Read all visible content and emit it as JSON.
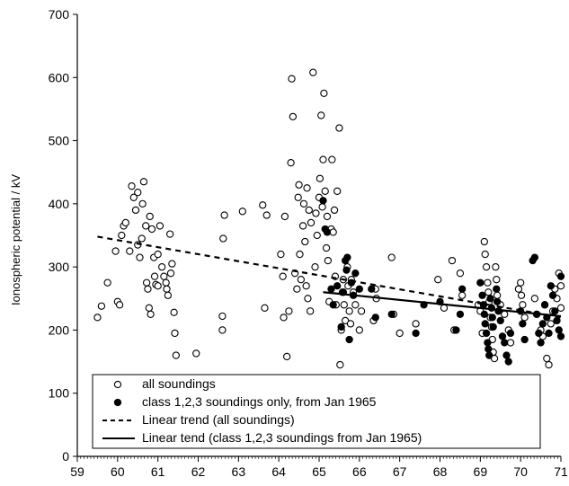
{
  "chart_data": {
    "type": "scatter",
    "title": "",
    "xlabel": "",
    "ylabel": "Ionospheric potential / kV",
    "xlim": [
      59,
      71
    ],
    "ylim": [
      0,
      700
    ],
    "x_ticks": [
      "59",
      "60",
      "61",
      "62",
      "63",
      "64",
      "65",
      "66",
      "67",
      "68",
      "69",
      "70",
      "71"
    ],
    "y_ticks": [
      "0",
      "100",
      "200",
      "300",
      "400",
      "500",
      "600",
      "700"
    ],
    "grid": false,
    "legend_position": "bottom-center",
    "series": [
      {
        "name": "all soundings",
        "marker": "open-circle",
        "color": "#000000",
        "points": [
          [
            59.5,
            220
          ],
          [
            59.6,
            238
          ],
          [
            59.75,
            275
          ],
          [
            59.95,
            325
          ],
          [
            60.0,
            245
          ],
          [
            60.05,
            240
          ],
          [
            60.1,
            350
          ],
          [
            60.15,
            365
          ],
          [
            60.2,
            370
          ],
          [
            60.3,
            325
          ],
          [
            60.35,
            428
          ],
          [
            60.4,
            410
          ],
          [
            60.45,
            390
          ],
          [
            60.5,
            418
          ],
          [
            60.5,
            335
          ],
          [
            60.55,
            315
          ],
          [
            60.6,
            345
          ],
          [
            60.62,
            400
          ],
          [
            60.65,
            435
          ],
          [
            60.7,
            365
          ],
          [
            60.72,
            275
          ],
          [
            60.75,
            265
          ],
          [
            60.78,
            235
          ],
          [
            60.8,
            380
          ],
          [
            60.82,
            225
          ],
          [
            60.85,
            360
          ],
          [
            60.9,
            315
          ],
          [
            60.92,
            285
          ],
          [
            60.95,
            272
          ],
          [
            61.0,
            320
          ],
          [
            61.0,
            270
          ],
          [
            61.05,
            365
          ],
          [
            61.1,
            300
          ],
          [
            61.15,
            285
          ],
          [
            61.2,
            275
          ],
          [
            61.22,
            265
          ],
          [
            61.25,
            255
          ],
          [
            61.3,
            352
          ],
          [
            61.32,
            290
          ],
          [
            61.35,
            305
          ],
          [
            61.4,
            228
          ],
          [
            61.42,
            195
          ],
          [
            61.45,
            160
          ],
          [
            61.95,
            163
          ],
          [
            62.6,
            200
          ],
          [
            62.6,
            222
          ],
          [
            62.62,
            345
          ],
          [
            62.65,
            382
          ],
          [
            63.1,
            388
          ],
          [
            63.6,
            398
          ],
          [
            63.65,
            235
          ],
          [
            63.7,
            382
          ],
          [
            64.05,
            320
          ],
          [
            64.1,
            285
          ],
          [
            64.12,
            220
          ],
          [
            64.15,
            380
          ],
          [
            64.2,
            158
          ],
          [
            64.25,
            230
          ],
          [
            64.3,
            465
          ],
          [
            64.32,
            598
          ],
          [
            64.35,
            538
          ],
          [
            64.4,
            290
          ],
          [
            64.45,
            265
          ],
          [
            64.48,
            410
          ],
          [
            64.5,
            430
          ],
          [
            64.52,
            320
          ],
          [
            64.55,
            280
          ],
          [
            64.6,
            365
          ],
          [
            64.62,
            400
          ],
          [
            64.65,
            340
          ],
          [
            64.68,
            270
          ],
          [
            64.7,
            425
          ],
          [
            64.72,
            250
          ],
          [
            64.75,
            390
          ],
          [
            64.78,
            230
          ],
          [
            64.8,
            370
          ],
          [
            64.85,
            608
          ],
          [
            64.9,
            300
          ],
          [
            64.92,
            385
          ],
          [
            64.95,
            350
          ],
          [
            65.0,
            410
          ],
          [
            65.02,
            440
          ],
          [
            65.05,
            540
          ],
          [
            65.08,
            395
          ],
          [
            65.1,
            470
          ],
          [
            65.12,
            575
          ],
          [
            65.15,
            420
          ],
          [
            65.18,
            330
          ],
          [
            65.2,
            380
          ],
          [
            65.22,
            310
          ],
          [
            65.25,
            245
          ],
          [
            65.3,
            360
          ],
          [
            65.32,
            470
          ],
          [
            65.35,
            355
          ],
          [
            65.38,
            390
          ],
          [
            65.4,
            285
          ],
          [
            65.42,
            240
          ],
          [
            65.45,
            420
          ],
          [
            65.5,
            520
          ],
          [
            65.52,
            145
          ],
          [
            65.55,
            200
          ],
          [
            65.58,
            260
          ],
          [
            65.6,
            280
          ],
          [
            65.62,
            240
          ],
          [
            65.65,
            215
          ],
          [
            65.7,
            300
          ],
          [
            65.72,
            270
          ],
          [
            65.75,
            230
          ],
          [
            65.78,
            210
          ],
          [
            65.8,
            280
          ],
          [
            65.85,
            260
          ],
          [
            65.9,
            240
          ],
          [
            66.0,
            200
          ],
          [
            66.05,
            230
          ],
          [
            66.35,
            215
          ],
          [
            66.4,
            265
          ],
          [
            66.42,
            250
          ],
          [
            66.8,
            315
          ],
          [
            66.85,
            225
          ],
          [
            67.0,
            195
          ],
          [
            67.4,
            210
          ],
          [
            67.95,
            280
          ],
          [
            68.1,
            235
          ],
          [
            68.3,
            310
          ],
          [
            68.35,
            200
          ],
          [
            68.5,
            290
          ],
          [
            68.55,
            255
          ],
          [
            68.95,
            240
          ],
          [
            69.0,
            230
          ],
          [
            69.05,
            195
          ],
          [
            69.1,
            340
          ],
          [
            69.12,
            320
          ],
          [
            69.15,
            300
          ],
          [
            69.18,
            275
          ],
          [
            69.2,
            260
          ],
          [
            69.22,
            245
          ],
          [
            69.25,
            220
          ],
          [
            69.28,
            205
          ],
          [
            69.3,
            185
          ],
          [
            69.32,
            165
          ],
          [
            69.35,
            155
          ],
          [
            69.38,
            300
          ],
          [
            69.4,
            280
          ],
          [
            69.42,
            255
          ],
          [
            69.5,
            240
          ],
          [
            69.6,
            225
          ],
          [
            69.7,
            200
          ],
          [
            69.75,
            180
          ],
          [
            69.95,
            265
          ],
          [
            70.0,
            275
          ],
          [
            70.02,
            255
          ],
          [
            70.05,
            240
          ],
          [
            70.1,
            220
          ],
          [
            70.35,
            250
          ],
          [
            70.4,
            225
          ],
          [
            70.5,
            200
          ],
          [
            70.55,
            190
          ],
          [
            70.6,
            240
          ],
          [
            70.65,
            155
          ],
          [
            70.7,
            145
          ],
          [
            70.75,
            210
          ],
          [
            70.8,
            230
          ],
          [
            70.85,
            265
          ],
          [
            70.9,
            250
          ],
          [
            70.95,
            290
          ],
          [
            71.0,
            270
          ],
          [
            71.0,
            235
          ]
        ]
      },
      {
        "name": "class 1,2,3 soundings only, from Jan 1965",
        "marker": "filled-circle",
        "color": "#000000",
        "points": [
          [
            65.1,
            405
          ],
          [
            65.15,
            360
          ],
          [
            65.2,
            355
          ],
          [
            65.3,
            265
          ],
          [
            65.35,
            240
          ],
          [
            65.45,
            270
          ],
          [
            65.55,
            205
          ],
          [
            65.6,
            260
          ],
          [
            65.65,
            310
          ],
          [
            65.68,
            295
          ],
          [
            65.7,
            315
          ],
          [
            65.75,
            185
          ],
          [
            65.8,
            275
          ],
          [
            65.85,
            255
          ],
          [
            65.9,
            290
          ],
          [
            66.0,
            265
          ],
          [
            66.3,
            265
          ],
          [
            66.4,
            220
          ],
          [
            66.8,
            225
          ],
          [
            67.4,
            195
          ],
          [
            67.6,
            240
          ],
          [
            68.0,
            245
          ],
          [
            68.4,
            200
          ],
          [
            68.5,
            225
          ],
          [
            68.55,
            265
          ],
          [
            69.0,
            275
          ],
          [
            69.05,
            255
          ],
          [
            69.08,
            240
          ],
          [
            69.1,
            225
          ],
          [
            69.12,
            210
          ],
          [
            69.15,
            195
          ],
          [
            69.18,
            180
          ],
          [
            69.2,
            170
          ],
          [
            69.22,
            160
          ],
          [
            69.25,
            250
          ],
          [
            69.28,
            235
          ],
          [
            69.3,
            220
          ],
          [
            69.32,
            205
          ],
          [
            69.4,
            265
          ],
          [
            69.42,
            245
          ],
          [
            69.45,
            230
          ],
          [
            69.5,
            215
          ],
          [
            69.55,
            190
          ],
          [
            69.6,
            180
          ],
          [
            69.65,
            160
          ],
          [
            69.7,
            150
          ],
          [
            69.75,
            195
          ],
          [
            70.0,
            230
          ],
          [
            70.05,
            210
          ],
          [
            70.1,
            185
          ],
          [
            70.3,
            310
          ],
          [
            70.35,
            315
          ],
          [
            70.4,
            225
          ],
          [
            70.45,
            195
          ],
          [
            70.5,
            180
          ],
          [
            70.55,
            210
          ],
          [
            70.6,
            240
          ],
          [
            70.65,
            220
          ],
          [
            70.7,
            195
          ],
          [
            70.75,
            270
          ],
          [
            70.8,
            255
          ],
          [
            70.85,
            230
          ],
          [
            70.9,
            215
          ],
          [
            70.95,
            200
          ],
          [
            71.0,
            285
          ],
          [
            71.0,
            190
          ]
        ]
      }
    ],
    "trends": [
      {
        "name": "Linear trend (all soundings)",
        "style": "dashed",
        "x": [
          59.5,
          71.0
        ],
        "y": [
          348,
          220
        ]
      },
      {
        "name": "Linear tend (class 1,2,3 soundings from Jan 1965)",
        "style": "solid",
        "x": [
          65.1,
          71.0
        ],
        "y": [
          260,
          222
        ]
      }
    ]
  }
}
